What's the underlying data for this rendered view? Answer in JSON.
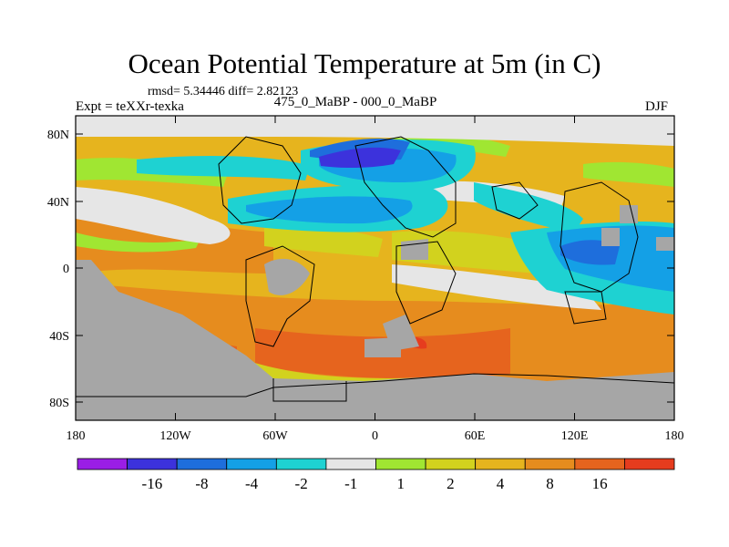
{
  "header": {
    "title": "Ocean Potential Temperature at 5m (in C)",
    "stats": "rmsd= 5.34446 diff= 2.82123",
    "experiment": "Expt = teXXr-texka",
    "comparison": "475_0_MaBP - 000_0_MaBP",
    "season": "DJF"
  },
  "map": {
    "x_ticks": [
      "180",
      "120W",
      "60W",
      "0",
      "60E",
      "120E",
      "180"
    ],
    "y_ticks": [
      "80N",
      "40N",
      "0",
      "40S",
      "80S"
    ],
    "land_color": "#a6a6a6",
    "ice_color": "#e6e6e6"
  },
  "colorbar": {
    "colors": [
      "#9a1ee6",
      "#3c32dc",
      "#1e6edc",
      "#14a0e6",
      "#1ed2d2",
      "#e6e6e6",
      "#a0e632",
      "#d2d21e",
      "#e6b41e",
      "#e68c1e",
      "#e6641e",
      "#e63c1e"
    ],
    "labels": [
      "-16",
      "-8",
      "-4",
      "-2",
      "-1",
      "1",
      "2",
      "4",
      "8",
      "16"
    ]
  }
}
